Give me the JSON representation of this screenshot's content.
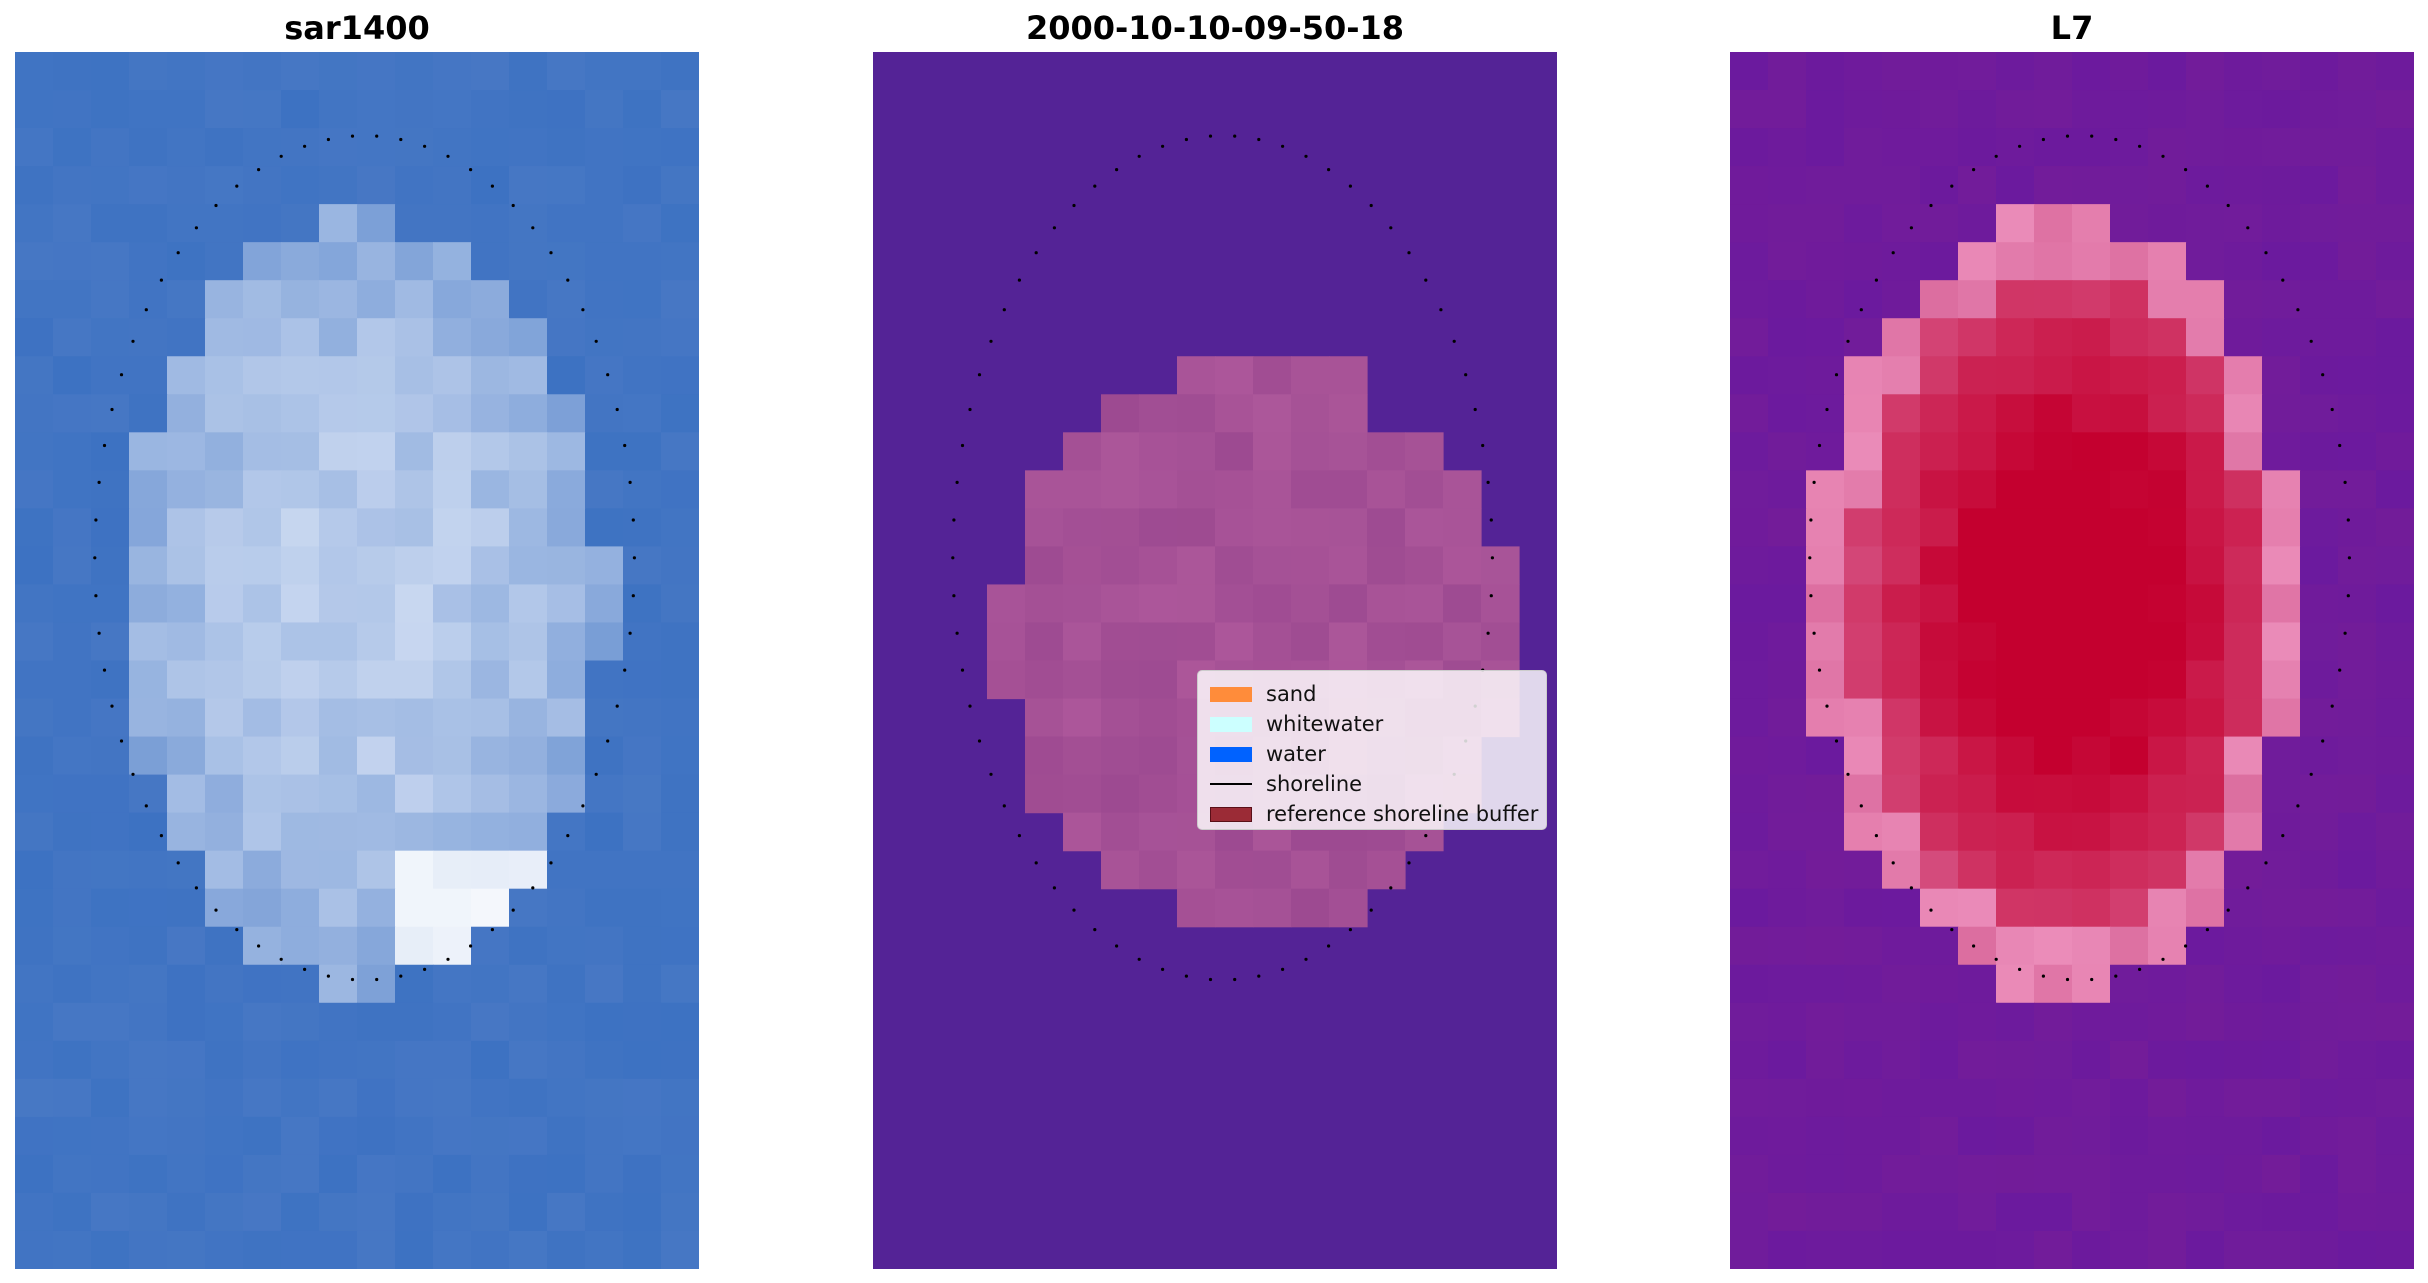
{
  "panels": [
    {
      "title": "sar1400",
      "description": "Landsat RGB composite with shoreline points"
    },
    {
      "title": "2000-10-10-09-50-18",
      "description": "classified image with legend"
    },
    {
      "title": "L7",
      "description": "MNDWI colour map with shoreline points"
    }
  ],
  "legend": {
    "items": [
      {
        "label": "sand",
        "color": "#ff8c3a",
        "kind": "patch"
      },
      {
        "label": "whitewater",
        "color": "#ccffff",
        "kind": "patch"
      },
      {
        "label": "water",
        "color": "#0062ff",
        "kind": "patch"
      },
      {
        "label": "shoreline",
        "color": "#000000",
        "kind": "line"
      },
      {
        "label": "reference shoreline buffer",
        "color": "#9b2b36",
        "kind": "patch"
      }
    ]
  },
  "colors": {
    "rgb_base": "#3d72c2",
    "classified_water": "#542396",
    "classified_buffer": "#9d4a91",
    "mndwi_low": "#6b1a9e",
    "mndwi_high": "#c4002f",
    "shoreline": "#000000"
  }
}
